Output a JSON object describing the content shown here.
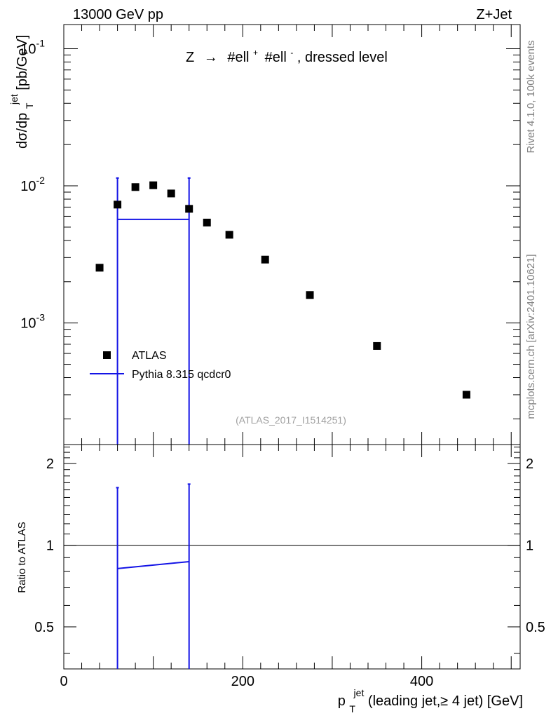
{
  "header": {
    "left": "13000 GeV pp",
    "right": "Z+Jet"
  },
  "side": {
    "rivet": "Rivet 4.1.0,  100k events",
    "mcplots": "mcplots.cern.ch [arXiv:2401.10621]"
  },
  "main_plot": {
    "title": "Z → #ell⁺ #ell⁻, dressed level",
    "title_lhs": "Z",
    "title_arrow": "→",
    "title_ell1": "#ell",
    "title_sup1": "+",
    "title_ell2": "#ell",
    "title_sup2": "-",
    "title_rest": ", dressed level",
    "ylabel": "dσ/dp_T^jet [pb/GeV]",
    "ylabel_main": "dσ/dp",
    "ylabel_sub": "T",
    "ylabel_sup": "jet",
    "ylabel_unit": " [pb/GeV]",
    "y_ticks": [
      {
        "value": 0.1,
        "base": "10",
        "exp": "-1"
      },
      {
        "value": 0.01,
        "base": "10",
        "exp": "-2"
      },
      {
        "value": 0.001,
        "base": "10",
        "exp": "-3"
      }
    ],
    "analysis_id": "(ATLAS_2017_I1514251)",
    "legend": [
      {
        "label": "ATLAS",
        "style": "marker"
      },
      {
        "label": "Pythia 8.315 qcdcr0",
        "style": "line"
      }
    ]
  },
  "ratio_plot": {
    "ylabel": "Ratio to ATLAS",
    "y_ticks": [
      "2",
      "1",
      "0.5"
    ]
  },
  "xaxis": {
    "label": "p_T^jet (leading jet,≥ 4 jet) [GeV]",
    "label_main": "p",
    "label_sub": "T",
    "label_sup": "jet",
    "label_rest": " (leading jet,≥ 4 jet) [GeV]",
    "ticks": [
      "0",
      "200",
      "400"
    ]
  },
  "chart_data": {
    "type": "scatter",
    "x_range": [
      0,
      510
    ],
    "main_y_range": [
      0.00013,
      0.15
    ],
    "main_y_scale": "log",
    "ratio_y_range": [
      0.35,
      2.35
    ],
    "series": [
      {
        "name": "ATLAS",
        "kind": "data-points",
        "x": [
          40,
          60,
          80,
          100,
          120,
          140,
          160,
          185,
          225,
          275,
          350,
          450
        ],
        "y": [
          0.00253,
          0.0073,
          0.0098,
          0.0101,
          0.0088,
          0.0068,
          0.0054,
          0.0044,
          0.0029,
          0.0016,
          0.00068,
          0.0003
        ]
      },
      {
        "name": "Pythia 8.315 qcdcr0",
        "kind": "histogram",
        "color": "#1414e6",
        "bin_edges": [
          60,
          140
        ],
        "values": [
          0.0057
        ],
        "err_up": [
          0.0114
        ],
        "err_down": [
          0.00013
        ]
      }
    ],
    "ratio": {
      "name": "Pythia 8.315 qcdcr0 / ATLAS",
      "x": [
        60,
        140
      ],
      "y": [
        0.82,
        0.87
      ],
      "err_up": [
        1.63,
        1.68
      ],
      "err_down": [
        0.35,
        0.35
      ],
      "reference_line": 1
    }
  }
}
